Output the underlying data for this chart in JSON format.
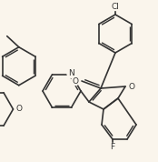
{
  "bg": "#faf5ec",
  "lc": "#333333",
  "lw": 1.2,
  "figsize": [
    1.74,
    1.78
  ],
  "dpi": 100,
  "xlim": [
    0,
    174
  ],
  "ylim": [
    0,
    178
  ]
}
